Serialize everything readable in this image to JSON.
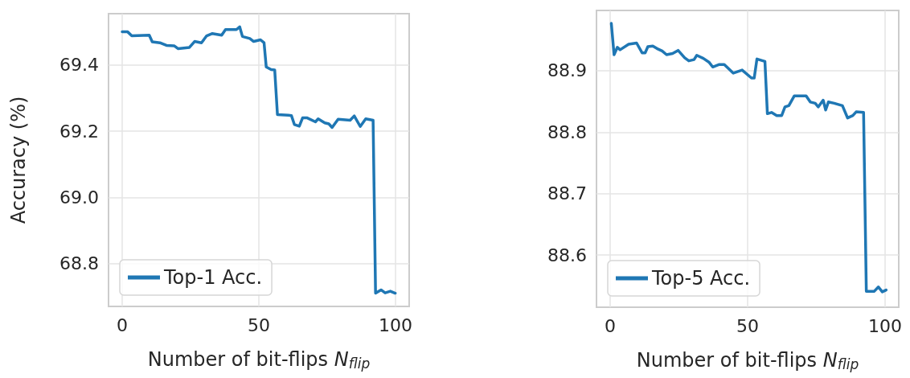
{
  "chart_data": [
    {
      "type": "line",
      "xlabel": "Number of bit-flips N$_{flip}$",
      "ylabel": "Accuracy (%)",
      "xlim": [
        -5,
        105
      ],
      "ylim": [
        68.67,
        69.555
      ],
      "xticks": [
        0,
        50,
        100
      ],
      "yticks": [
        68.8,
        {
          "value": 69,
          "label": "69.0"
        },
        69.2,
        69.4
      ],
      "grid": true,
      "legend": "bottom left",
      "line_style": "solid",
      "marker": "none",
      "series": [
        {
          "name": "Top-1 Acc.",
          "color": "#1f77b4",
          "x": [
            0,
            2,
            3.5,
            9.9,
            11,
            13.8,
            16.2,
            19,
            20.5,
            24.6,
            26.5,
            29,
            30.9,
            33,
            36.4,
            37.8,
            41.8,
            43,
            44,
            46.7,
            48.1,
            50.6,
            51.9,
            52.7,
            54.5,
            55.8,
            56.8,
            60.8,
            61.9,
            63,
            64.8,
            66,
            67.7,
            70.7,
            71.7,
            74.1,
            75.6,
            76.8,
            79,
            83.4,
            84.9,
            87.1,
            89.1,
            91.8,
            92.7,
            94.7,
            96.2,
            98.1,
            99.9
          ],
          "values": [
            69.5,
            69.5,
            69.488,
            69.49,
            69.47,
            69.467,
            69.459,
            69.458,
            69.449,
            69.453,
            69.471,
            69.467,
            69.488,
            69.495,
            69.49,
            69.507,
            69.507,
            69.515,
            69.486,
            69.48,
            69.471,
            69.476,
            69.467,
            69.394,
            69.386,
            69.385,
            69.25,
            69.248,
            69.247,
            69.22,
            69.215,
            69.24,
            69.24,
            69.228,
            69.237,
            69.225,
            69.222,
            69.211,
            69.236,
            69.233,
            69.246,
            69.214,
            69.237,
            69.233,
            68.71,
            68.72,
            68.711,
            68.716,
            68.71
          ]
        }
      ]
    },
    {
      "type": "line",
      "xlabel": "Number of bit-flips N$_{flip}$",
      "xlim": [
        -5,
        105
      ],
      "ylim": [
        88.515,
        88.998
      ],
      "xticks": [
        0,
        50,
        100
      ],
      "yticks": [
        88.6,
        88.7,
        88.8,
        88.9
      ],
      "grid": true,
      "legend": "bottom left",
      "line_style": "solid",
      "marker": "none",
      "series": [
        {
          "name": "Top-5 Acc.",
          "color": "#1f77b4",
          "x": [
            0.4,
            1.4,
            2.6,
            3.6,
            6.7,
            9.6,
            11.6,
            12.7,
            13.7,
            15.5,
            17,
            18.9,
            20.5,
            22.7,
            24.7,
            27.1,
            28.6,
            30.5,
            31.5,
            33.9,
            35.9,
            37.3,
            39.7,
            41.5,
            42.9,
            44.8,
            48,
            51.4,
            52.4,
            53.4,
            56.3,
            57.2,
            58.7,
            60.6,
            62.4,
            63.6,
            65,
            67,
            68.9,
            71.3,
            72.8,
            74.6,
            75.7,
            77.5,
            78.4,
            79.4,
            81.5,
            84.5,
            86.4,
            88.3,
            89.5,
            92.2,
            93.2,
            96.1,
            97.6,
            99,
            100.4
          ],
          "values": [
            88.977,
            88.926,
            88.938,
            88.934,
            88.943,
            88.945,
            88.929,
            88.929,
            88.939,
            88.94,
            88.936,
            88.932,
            88.926,
            88.928,
            88.933,
            88.921,
            88.916,
            88.918,
            88.925,
            88.92,
            88.914,
            88.906,
            88.91,
            88.91,
            88.904,
            88.896,
            88.901,
            88.888,
            88.888,
            88.919,
            88.915,
            88.83,
            88.832,
            88.827,
            88.827,
            88.841,
            88.843,
            88.859,
            88.859,
            88.859,
            88.849,
            88.847,
            88.841,
            88.852,
            88.836,
            88.849,
            88.847,
            88.843,
            88.823,
            88.827,
            88.833,
            88.832,
            88.541,
            88.541,
            88.548,
            88.54,
            88.543
          ]
        }
      ]
    }
  ]
}
